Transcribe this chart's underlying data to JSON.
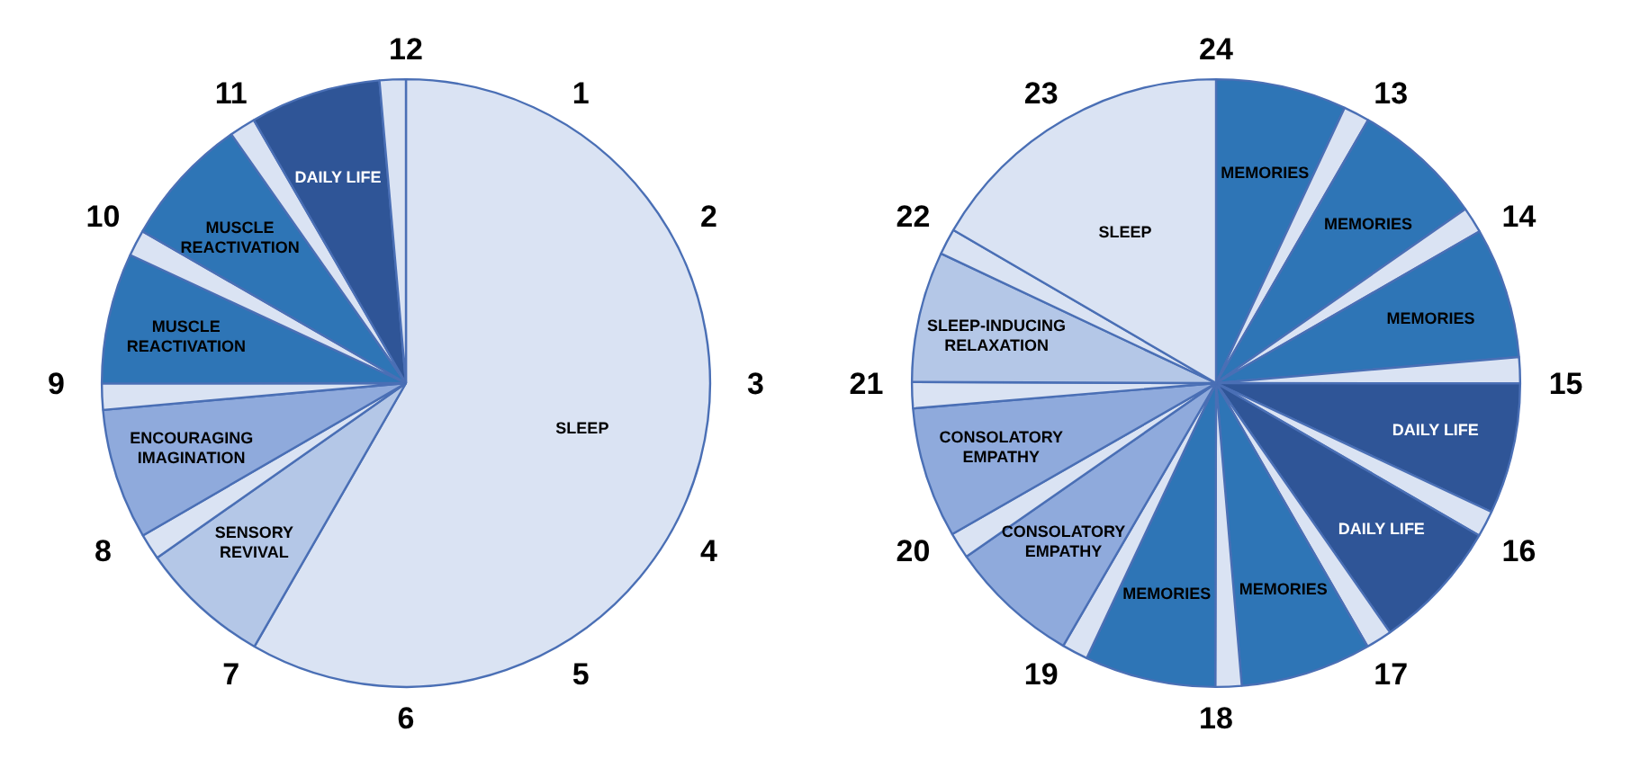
{
  "chart_data": [
    {
      "type": "pie",
      "categories": [
        "SLEEP",
        "SENSORY REVIVAL",
        null,
        "ENCOURAGING IMAGINATION",
        null,
        "MUSCLE REACTIVATION",
        null,
        "MUSCLE REACTIVATION",
        null,
        "DAILY LIFE",
        null
      ],
      "values": [
        58.3,
        6.95,
        1.39,
        6.95,
        1.39,
        6.95,
        1.39,
        6.95,
        1.39,
        6.95,
        1.39
      ],
      "colors": [
        "#dae3f3",
        "#b4c7e7",
        "#dae3f3",
        "#8faadc",
        "#dae3f3",
        "#2e75b6",
        "#dae3f3",
        "#2e75b6",
        "#dae3f3",
        "#2f5597",
        "#dae3f3"
      ],
      "annotations": [
        "1",
        "2",
        "3",
        "4",
        "5",
        "6",
        "7",
        "8",
        "9",
        "10",
        "11",
        "12"
      ]
    },
    {
      "type": "pie",
      "categories": [
        "MEMORIES",
        null,
        "MEMORIES",
        null,
        "MEMORIES",
        null,
        "DAILY LIFE",
        null,
        "DAILY LIFE",
        null,
        "MEMORIES",
        null,
        "MEMORIES",
        null,
        "CONSOLATORY EMPATHY",
        null,
        "CONSOLATORY EMPATHY",
        null,
        "SLEEP-INDUCING RELAXATION",
        null,
        "SLEEP"
      ],
      "values": [
        6.95,
        1.39,
        6.95,
        1.39,
        6.95,
        1.39,
        6.95,
        1.39,
        6.95,
        1.39,
        6.95,
        1.39,
        6.95,
        1.39,
        6.95,
        1.39,
        6.95,
        1.39,
        6.95,
        1.39,
        16.6
      ],
      "colors": [
        "#2e75b6",
        "#dae3f3",
        "#2e75b6",
        "#dae3f3",
        "#2e75b6",
        "#dae3f3",
        "#2f5597",
        "#dae3f3",
        "#2f5597",
        "#dae3f3",
        "#2e75b6",
        "#dae3f3",
        "#2e75b6",
        "#dae3f3",
        "#8faadc",
        "#dae3f3",
        "#8faadc",
        "#dae3f3",
        "#b4c7e7",
        "#dae3f3",
        "#dae3f3"
      ],
      "annotations": [
        "13",
        "14",
        "15",
        "16",
        "17",
        "18",
        "19",
        "20",
        "21",
        "22",
        "23",
        "24"
      ]
    }
  ]
}
